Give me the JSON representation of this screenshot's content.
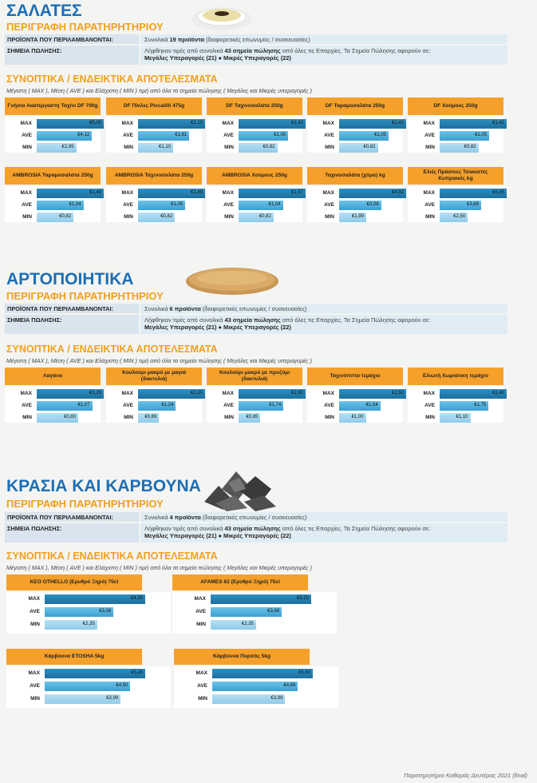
{
  "common": {
    "desc_label": "ΠΡΟΪΟΝΤΑ ΠΟΥ ΠΕΡΙΛΑΜΒΑΝΟΝΤΑΙ:",
    "points_label": "ΣΗΜΕΙΑ ΠΩΛΗΣΗΣ:",
    "observatory_sub": "ΠΕΡΙΓΡΑΦΗ ΠΑΡΑΤΗΡΗΤΗΡΙΟΥ",
    "results_title": "ΣΥΝΟΠΤΙΚΑ / ΕΝΔΕΙΚΤΙΚΑ ΑΠΟΤΕΛΕΣΜΑΤΑ",
    "results_note": "Μέγιστη ( MAX ), Μέση ( AVE ) και Ελάχιστη ( MIN ) τιμή από όλα τα σημεία πώλησης ( Μεγάλες και Μικρές υπεραγορές )",
    "products_prefix": "Συνολικά ",
    "products_suffix": " (διαφορετικές επωνυμίες / συσκευασίες)",
    "points_text_1": "Λήφθηκαν τιμές από συνολικά ",
    "points_bold": "43 σημεία πώλησης",
    "points_text_2": " από όλες τις Επαρχίες. Τα Σημεία Πώλησης αφορούν σε:",
    "points_line2": "Μεγάλες Υπεραγορές (21) ● Μικρές Υπεραγορές (22)",
    "labels": {
      "max": "MAX",
      "ave": "AVE",
      "min": "MIN"
    }
  },
  "sections": [
    {
      "title": "ΣΑΛΑΤΕΣ",
      "products_count": "19 προϊόντα",
      "picture": "salad-bowl",
      "cards": [
        {
          "name": "Γνήσια Ακατέργαστη Ταχίνι DF 700g",
          "max": "€5,00",
          "ave": "€4,12",
          "min": "€2,95"
        },
        {
          "name": "DF Πίκλες Piccalilli 475g",
          "max": "€2,10",
          "ave": "€1,61",
          "min": "€1,10"
        },
        {
          "name": "DF Ταχινοσαλάτα 250g",
          "max": "€1,42",
          "ave": "€1,05",
          "min": "€0,82"
        },
        {
          "name": "DF Ταραμοσαλάτα 250g",
          "max": "€1,42",
          "ave": "€1,05",
          "min": "€0,82"
        },
        {
          "name": "DF Χούμους 250g",
          "max": "€1,42",
          "ave": "€1,05",
          "min": "€0,82"
        },
        {
          "name": "AMBROSIA Ταραμοσαλάτα 250g",
          "max": "€1,49",
          "ave": "€1,04",
          "min": "€0,82"
        },
        {
          "name": "AMBROSIA Ταχινοσαλάτα 250g",
          "max": "€1,49",
          "ave": "€1,05",
          "min": "€0,82"
        },
        {
          "name": "AMBROSIA Χούμους 250g",
          "max": "€1,57",
          "ave": "€1,04",
          "min": "€0,82"
        },
        {
          "name": "Ταχινοσαλάτα (χύμα) kg",
          "max": "€4,92",
          "ave": "€3,08",
          "min": "€1,99"
        },
        {
          "name": "Ελιές Πράσινες Τσακιστές Κυπριακές kg",
          "max": "€5,95",
          "ave": "€3,68",
          "min": "€2,50"
        }
      ]
    },
    {
      "title": "ΑΡΤΟΠΟΙΗΤΙΚΑ",
      "products_count": "6 προϊόντα",
      "picture": "bread-loaf",
      "cards": [
        {
          "name": "Λαγάνα",
          "max": "€1,29",
          "ave": "€1,07",
          "min": "€0,80"
        },
        {
          "name": "Κουλούρι μακρύ με μαγιά (δακτυλιά)",
          "max": "€2,20",
          "ave": "€1,24",
          "min": "€0,69"
        },
        {
          "name": "Κουλούρι μακρύ με προζύμι (δακτυλιά)",
          "max": "€2,60",
          "ave": "€1,74",
          "min": "€0,85"
        },
        {
          "name": "Ταχινόπιττα τεμάχιο",
          "max": "€2,50",
          "ave": "€1,54",
          "min": "€1,00"
        },
        {
          "name": "Ελιωτή Χωριάτικη τεμάχιο",
          "max": "€2,40",
          "ave": "€1,75",
          "min": "€1,10"
        }
      ]
    },
    {
      "title": "ΚΡΑΣΙΑ ΚΑΙ ΚΑΡΒΟΥΝΑ",
      "products_count": "4 προϊόντα",
      "picture": "charcoal-pile",
      "cards": [
        {
          "name": "KEO OTHELLO (Ερυθρό Ξηρό) 75cl",
          "max": "€4,50",
          "ave": "€3,08",
          "min": "€2,35"
        },
        {
          "name": "AFAMES 62 (Ερυθρό Ξηρό) 75cl",
          "max": "€5,20",
          "ave": "€3,68",
          "min": "€2,35"
        },
        {
          "name": "Κάρβουνα ETOSHA 5kg",
          "max": "€5,28",
          "ave": "€4,50",
          "min": "€3,99"
        },
        {
          "name": "Κάρβουνα Πυρσός 5kg",
          "max": "€5,50",
          "ave": "€4,69",
          "min": "€3,99"
        }
      ]
    }
  ],
  "footer": "Παρατηρητήριο Καθαράς Δευτέρας 2021 (final)"
}
